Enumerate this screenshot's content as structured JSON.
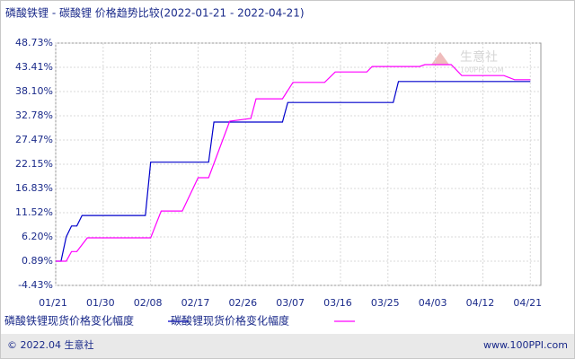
{
  "chart_data": {
    "type": "line",
    "title": "磷酸铁锂 - 碳酸锂 价格趋势比较(2022-01-21 - 2022-04-21)",
    "xlim": [
      "01/21",
      "04/23"
    ],
    "xticks": [
      "01/21",
      "01/30",
      "02/08",
      "02/17",
      "02/26",
      "03/07",
      "03/16",
      "03/25",
      "04/03",
      "04/12",
      "04/21"
    ],
    "ylim": [
      -4.43,
      48.73
    ],
    "yticks": [
      {
        "value": 48.73,
        "label": "48.73%"
      },
      {
        "value": 43.41,
        "label": "43.41%"
      },
      {
        "value": 38.1,
        "label": "38.10%"
      },
      {
        "value": 32.78,
        "label": "32.78%"
      },
      {
        "value": 27.47,
        "label": "27.47%"
      },
      {
        "value": 22.15,
        "label": "22.15%"
      },
      {
        "value": 16.83,
        "label": "16.83%"
      },
      {
        "value": 11.52,
        "label": "11.52%"
      },
      {
        "value": 6.2,
        "label": "6.20%"
      },
      {
        "value": 0.89,
        "label": "0.89%"
      },
      {
        "value": -4.43,
        "label": "-4.43%"
      }
    ],
    "grid": true,
    "series": [
      {
        "name": "磷酸铁锂现货价格变化幅度",
        "color": "#0000cc",
        "x": [
          "01/21",
          "01/22",
          "01/23",
          "01/24",
          "01/25",
          "01/26",
          "02/07",
          "02/08",
          "02/19",
          "02/20",
          "03/05",
          "03/06",
          "03/26",
          "03/27",
          "04/21"
        ],
        "values": [
          0.89,
          0.89,
          6.2,
          8.6,
          8.6,
          10.9,
          10.9,
          22.6,
          22.6,
          31.4,
          31.4,
          35.7,
          35.7,
          40.3,
          40.3
        ]
      },
      {
        "name": "碳酸锂现货价格变化幅度",
        "color": "#ff00ff",
        "x": [
          "01/21",
          "01/23",
          "01/24",
          "01/25",
          "01/27",
          "02/08",
          "02/10",
          "02/14",
          "02/17",
          "02/19",
          "02/23",
          "02/27",
          "02/28",
          "03/05",
          "03/07",
          "03/13",
          "03/15",
          "03/21",
          "03/22",
          "03/31",
          "04/01",
          "04/06",
          "04/08",
          "04/16",
          "04/18",
          "04/21"
        ],
        "values": [
          0.89,
          0.89,
          3.0,
          3.0,
          6.0,
          6.0,
          11.9,
          11.9,
          19.2,
          19.2,
          31.6,
          32.2,
          36.5,
          36.5,
          40.1,
          40.1,
          42.4,
          42.4,
          43.6,
          43.6,
          44.0,
          44.0,
          41.6,
          41.6,
          40.7,
          40.7
        ]
      }
    ],
    "watermark": "生意社",
    "watermark_sub": "100PPI.COM",
    "footer_left": "© 2022.04 生意社",
    "footer_right": "www.100PPI.com"
  }
}
